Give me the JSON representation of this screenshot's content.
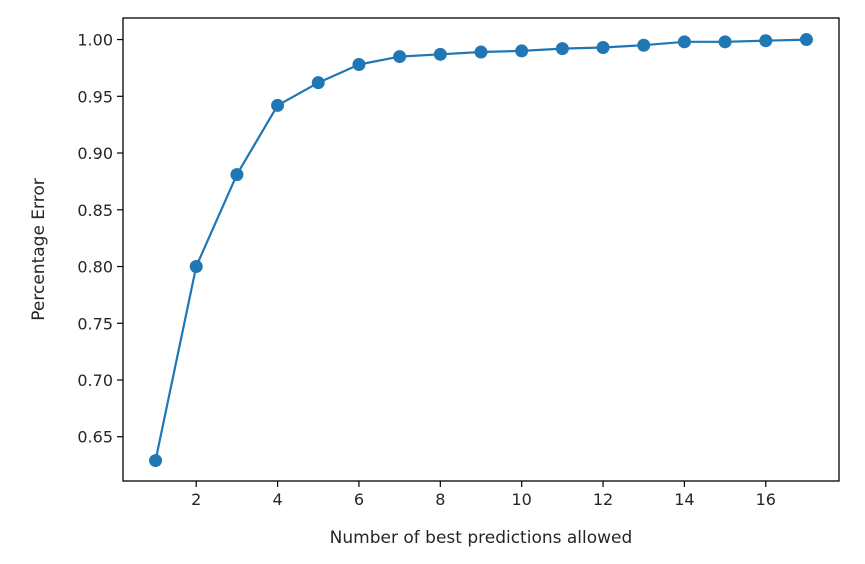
{
  "chart_data": {
    "type": "line",
    "title": "",
    "xlabel": "Number of best predictions allowed",
    "ylabel": "Percentage Error",
    "x": [
      1,
      2,
      3,
      4,
      5,
      6,
      7,
      8,
      9,
      10,
      11,
      12,
      13,
      14,
      15,
      16,
      17
    ],
    "series": [
      {
        "values": [
          0.629,
          0.8,
          0.881,
          0.942,
          0.962,
          0.978,
          0.985,
          0.987,
          0.989,
          0.99,
          0.992,
          0.993,
          0.995,
          0.998,
          0.998,
          0.999,
          1.0
        ],
        "color": "#1f77b4",
        "marker": "circle"
      }
    ],
    "xlim": [
      0.2,
      17.8
    ],
    "ylim": [
      0.611,
      1.019
    ],
    "xticks": [
      2,
      4,
      6,
      8,
      10,
      12,
      14,
      16
    ],
    "xtick_labels": [
      "2",
      "4",
      "6",
      "8",
      "10",
      "12",
      "14",
      "16"
    ],
    "yticks": [
      0.65,
      0.7,
      0.75,
      0.8,
      0.85,
      0.9,
      0.95,
      1.0
    ],
    "ytick_labels": [
      "0.65",
      "0.70",
      "0.75",
      "0.80",
      "0.85",
      "0.90",
      "0.95",
      "1.00"
    ],
    "grid": false,
    "legend": "none"
  }
}
